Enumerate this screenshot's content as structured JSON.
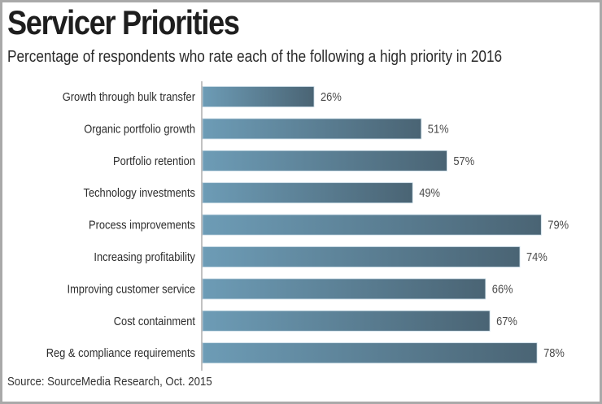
{
  "chart_data": {
    "type": "bar",
    "orientation": "horizontal",
    "title": "Servicer Priorities",
    "subtitle": "Percentage of respondents who rate each of the following a high priority in 2016",
    "source": "Source: SourceMedia Research, Oct. 2015",
    "categories": [
      "Growth through bulk transfer",
      "Organic portfolio growth",
      "Portfolio retention",
      "Technology investments",
      "Process improvements",
      "Increasing profitability",
      "Improving customer service",
      "Cost containment",
      "Reg & compliance requirements"
    ],
    "values": [
      26,
      51,
      57,
      49,
      79,
      74,
      66,
      67,
      78
    ],
    "value_labels": [
      "26%",
      "51%",
      "57%",
      "49%",
      "79%",
      "74%",
      "66%",
      "67%",
      "78%"
    ],
    "unit": "%",
    "xlabel": "",
    "ylabel": "",
    "xlim": [
      0,
      80
    ],
    "grid": false,
    "legend": "none",
    "colors": {
      "bar_light": "#6d9cb6",
      "bar_dark": "#4a6474",
      "axis": "#999999",
      "frame": "#a9a9a9"
    }
  }
}
